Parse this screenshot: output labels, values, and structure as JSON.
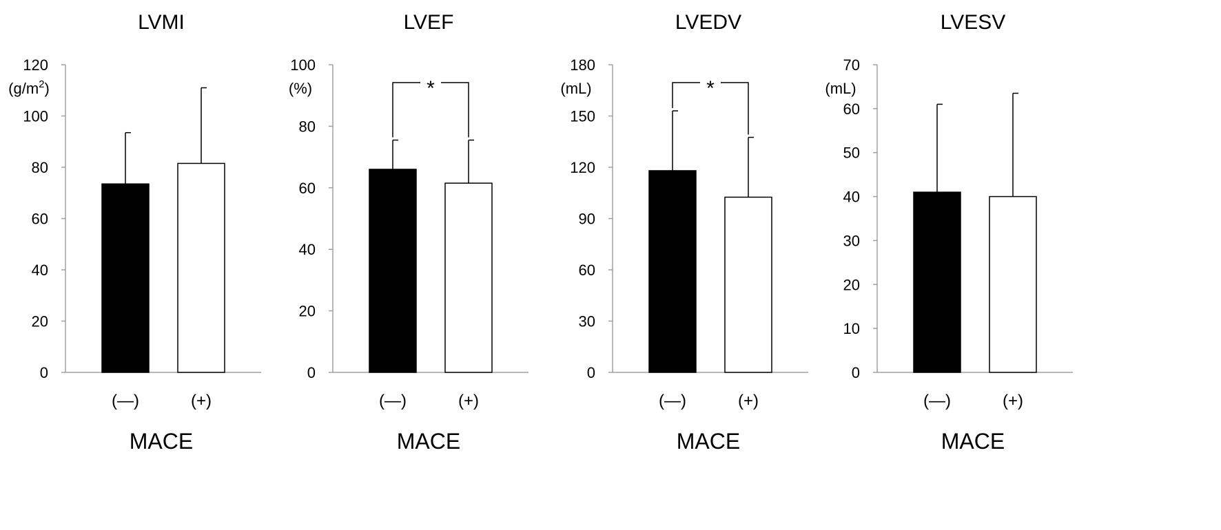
{
  "colors": {
    "bar_minus": "#000000",
    "bar_plus": "#ffffff",
    "axis": "#a0a0a0",
    "stroke": "#000000"
  },
  "chart_data": [
    {
      "type": "bar",
      "title": "LVMI",
      "ylabel": "(g/m2)",
      "ylabel_main": "(g/m",
      "ylabel_sup": "2",
      "ylabel_close": ")",
      "xlabel": "MACE",
      "categories": [
        "(—)",
        "(+)"
      ],
      "values": [
        73.5,
        81.5
      ],
      "errors": [
        20,
        29.5
      ],
      "ylim": [
        0,
        120
      ],
      "ticks": [
        0,
        20,
        40,
        60,
        80,
        100,
        120
      ],
      "significance": ""
    },
    {
      "type": "bar",
      "title": "LVEF",
      "ylabel": "(%)",
      "xlabel": "MACE",
      "categories": [
        "(—)",
        "(+)"
      ],
      "values": [
        66,
        61.5
      ],
      "errors": [
        9.5,
        14
      ],
      "ylim": [
        0,
        100
      ],
      "ticks": [
        0,
        20,
        40,
        60,
        80,
        100
      ],
      "significance": "*"
    },
    {
      "type": "bar",
      "title": "LVEDV",
      "ylabel": "(mL)",
      "xlabel": "MACE",
      "categories": [
        "(—)",
        "(+)"
      ],
      "values": [
        118,
        102.5
      ],
      "errors": [
        35,
        35
      ],
      "ylim": [
        0,
        180
      ],
      "ticks": [
        0,
        30,
        60,
        90,
        120,
        150,
        180
      ],
      "significance": "*"
    },
    {
      "type": "bar",
      "title": "LVESV",
      "ylabel": "(mL)",
      "xlabel": "MACE",
      "categories": [
        "(—)",
        "(+)"
      ],
      "values": [
        41,
        40
      ],
      "errors": [
        20,
        23.5
      ],
      "ylim": [
        0,
        70
      ],
      "ticks": [
        0,
        10,
        20,
        30,
        40,
        50,
        60,
        70
      ],
      "significance": ""
    }
  ]
}
